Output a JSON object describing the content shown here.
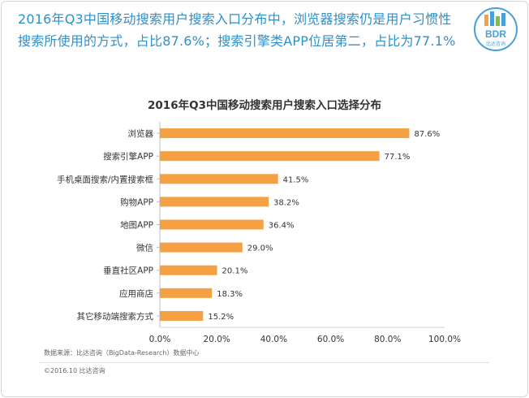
{
  "headline": "2016年Q3中国移动搜索用户搜索入口分布中，浏览器搜索仍是用户习惯性搜索所使用的方式，占比87.6%；搜索引擎类APP位居第二，占比为77.1%",
  "logo": {
    "text": "BDR",
    "subtext": "比达咨询",
    "color": "#4a9fd8"
  },
  "chart_data": {
    "type": "bar",
    "orientation": "horizontal",
    "title": "2016年Q3中国移动搜索用户搜索入口选择分布",
    "categories": [
      "浏览器",
      "搜索引擎APP",
      "手机桌面搜索/内置搜索框",
      "购物APP",
      "地图APP",
      "微信",
      "垂直社区APP",
      "应用商店",
      "其它移动端搜索方式"
    ],
    "values": [
      87.6,
      77.1,
      41.5,
      38.2,
      36.4,
      29.0,
      20.1,
      18.3,
      15.2
    ],
    "value_labels": [
      "87.6%",
      "77.1%",
      "41.5%",
      "38.2%",
      "36.4%",
      "29.0%",
      "20.1%",
      "18.3%",
      "15.2%"
    ],
    "xlim": [
      0,
      100
    ],
    "x_ticks": [
      "0.0%",
      "20.0%",
      "40.0%",
      "60.0%",
      "80.0%",
      "100.0%"
    ],
    "bar_color": "#f4a043",
    "grid": false
  },
  "footer": {
    "source": "数据来源：比达咨询（BigData-Research）数据中心",
    "copyright": "©2016.10 比达咨询"
  }
}
